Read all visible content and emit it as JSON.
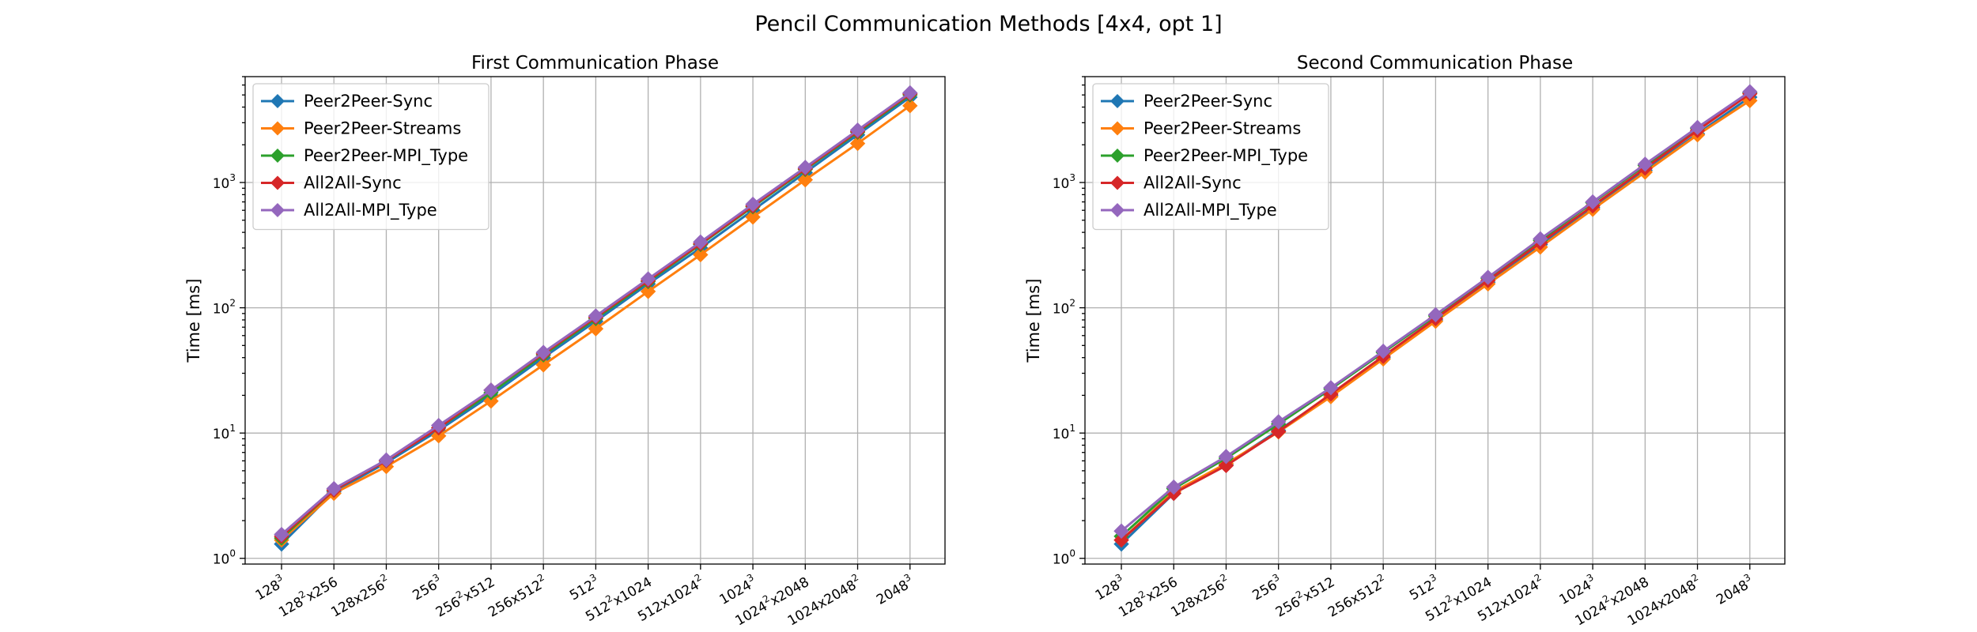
{
  "figure": {
    "suptitle": "Pencil Communication Methods [4x4, opt 1]"
  },
  "chart_data": [
    {
      "type": "line",
      "title": "First Communication Phase",
      "xlabel": "",
      "ylabel": "Time [ms]",
      "yscale": "log",
      "ylim": [
        0.9,
        7000
      ],
      "y_ticks": [
        {
          "value": 1,
          "base": "10",
          "exp": "0"
        },
        {
          "value": 10,
          "base": "10",
          "exp": "1"
        },
        {
          "value": 100,
          "base": "10",
          "exp": "2"
        },
        {
          "value": 1000,
          "base": "10",
          "exp": "3"
        }
      ],
      "grid": true,
      "legend": "top-left",
      "categories": [
        [
          {
            "t": "128"
          },
          {
            "t": "3",
            "sup": true
          }
        ],
        [
          {
            "t": "128"
          },
          {
            "t": "2",
            "sup": true
          },
          {
            "t": "x256"
          }
        ],
        [
          {
            "t": "128x256"
          },
          {
            "t": "2",
            "sup": true
          }
        ],
        [
          {
            "t": "256"
          },
          {
            "t": "3",
            "sup": true
          }
        ],
        [
          {
            "t": "256"
          },
          {
            "t": "2",
            "sup": true
          },
          {
            "t": "x512"
          }
        ],
        [
          {
            "t": "256x512"
          },
          {
            "t": "2",
            "sup": true
          }
        ],
        [
          {
            "t": "512"
          },
          {
            "t": "3",
            "sup": true
          }
        ],
        [
          {
            "t": "512"
          },
          {
            "t": "2",
            "sup": true
          },
          {
            "t": "x1024"
          }
        ],
        [
          {
            "t": "512x1024"
          },
          {
            "t": "2",
            "sup": true
          }
        ],
        [
          {
            "t": "1024"
          },
          {
            "t": "3",
            "sup": true
          }
        ],
        [
          {
            "t": "1024"
          },
          {
            "t": "2",
            "sup": true
          },
          {
            "t": "x2048"
          }
        ],
        [
          {
            "t": "1024x2048"
          },
          {
            "t": "2",
            "sup": true
          }
        ],
        [
          {
            "t": "2048"
          },
          {
            "t": "3",
            "sup": true
          }
        ]
      ],
      "series": [
        {
          "name": "Peer2Peer-Sync",
          "color": "#1f77b4",
          "values": [
            1.3,
            3.4,
            5.8,
            10.5,
            20,
            40,
            78,
            155,
            300,
            600,
            1200,
            2400,
            4800
          ]
        },
        {
          "name": "Peer2Peer-Streams",
          "color": "#ff7f0e",
          "values": [
            1.4,
            3.3,
            5.4,
            9.5,
            18,
            35,
            68,
            135,
            265,
            530,
            1050,
            2050,
            4100
          ]
        },
        {
          "name": "Peer2Peer-MPI_Type",
          "color": "#2ca02c",
          "values": [
            1.45,
            3.5,
            6.0,
            11,
            21,
            42,
            82,
            162,
            320,
            640,
            1270,
            2520,
            5000
          ]
        },
        {
          "name": "All2All-Sync",
          "color": "#d62728",
          "values": [
            1.5,
            3.5,
            6.0,
            11,
            22,
            43,
            84,
            165,
            325,
            650,
            1290,
            2560,
            5100
          ]
        },
        {
          "name": "All2All-MPI_Type",
          "color": "#9467bd",
          "values": [
            1.55,
            3.6,
            6.1,
            11.5,
            22,
            44,
            86,
            170,
            335,
            670,
            1320,
            2620,
            5200
          ]
        }
      ]
    },
    {
      "type": "line",
      "title": "Second Communication Phase",
      "xlabel": "",
      "ylabel": "Time [ms]",
      "yscale": "log",
      "ylim": [
        0.9,
        7000
      ],
      "y_ticks": [
        {
          "value": 1,
          "base": "10",
          "exp": "0"
        },
        {
          "value": 10,
          "base": "10",
          "exp": "1"
        },
        {
          "value": 100,
          "base": "10",
          "exp": "2"
        },
        {
          "value": 1000,
          "base": "10",
          "exp": "3"
        }
      ],
      "grid": true,
      "legend": "top-left",
      "categories": [
        [
          {
            "t": "128"
          },
          {
            "t": "3",
            "sup": true
          }
        ],
        [
          {
            "t": "128"
          },
          {
            "t": "2",
            "sup": true
          },
          {
            "t": "x256"
          }
        ],
        [
          {
            "t": "128x256"
          },
          {
            "t": "2",
            "sup": true
          }
        ],
        [
          {
            "t": "256"
          },
          {
            "t": "3",
            "sup": true
          }
        ],
        [
          {
            "t": "256"
          },
          {
            "t": "2",
            "sup": true
          },
          {
            "t": "x512"
          }
        ],
        [
          {
            "t": "256x512"
          },
          {
            "t": "2",
            "sup": true
          }
        ],
        [
          {
            "t": "512"
          },
          {
            "t": "3",
            "sup": true
          }
        ],
        [
          {
            "t": "512"
          },
          {
            "t": "2",
            "sup": true
          },
          {
            "t": "x1024"
          }
        ],
        [
          {
            "t": "512x1024"
          },
          {
            "t": "2",
            "sup": true
          }
        ],
        [
          {
            "t": "1024"
          },
          {
            "t": "3",
            "sup": true
          }
        ],
        [
          {
            "t": "1024"
          },
          {
            "t": "2",
            "sup": true
          },
          {
            "t": "x2048"
          }
        ],
        [
          {
            "t": "1024x2048"
          },
          {
            "t": "2",
            "sup": true
          }
        ],
        [
          {
            "t": "2048"
          },
          {
            "t": "3",
            "sup": true
          }
        ]
      ],
      "series": [
        {
          "name": "Peer2Peer-Sync",
          "color": "#1f77b4",
          "values": [
            1.3,
            3.3,
            5.6,
            10.5,
            20,
            40,
            80,
            160,
            320,
            630,
            1250,
            2450,
            4800
          ]
        },
        {
          "name": "Peer2Peer-Streams",
          "color": "#ff7f0e",
          "values": [
            1.4,
            3.4,
            5.7,
            10.2,
            19.5,
            39,
            78,
            155,
            305,
            610,
            1210,
            2400,
            4500
          ]
        },
        {
          "name": "Peer2Peer-MPI_Type",
          "color": "#2ca02c",
          "values": [
            1.5,
            3.6,
            6.3,
            11.8,
            22.5,
            44,
            86,
            172,
            345,
            690,
            1370,
            2700,
            5200
          ]
        },
        {
          "name": "All2All-Sync",
          "color": "#d62728",
          "values": [
            1.4,
            3.3,
            5.5,
            10.3,
            20.5,
            41,
            82,
            165,
            330,
            650,
            1300,
            2600,
            5100
          ]
        },
        {
          "name": "All2All-MPI_Type",
          "color": "#9467bd",
          "values": [
            1.65,
            3.7,
            6.5,
            12.3,
            23,
            45,
            88,
            175,
            355,
            700,
            1400,
            2750,
            5300
          ]
        }
      ]
    }
  ]
}
